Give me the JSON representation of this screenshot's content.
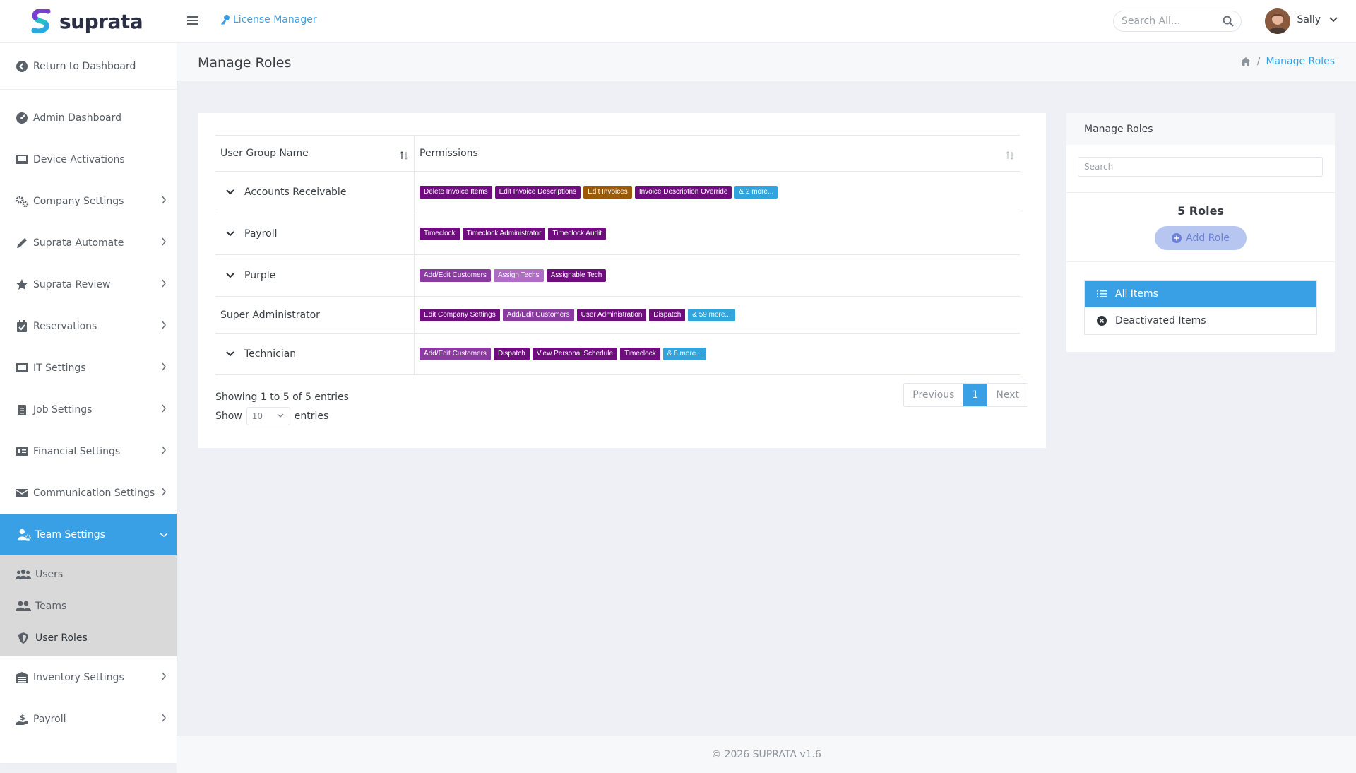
{
  "brand": {
    "name": "suprata"
  },
  "sidebar": {
    "return_label": "Return to Dashboard",
    "items": [
      {
        "label": "Admin Dashboard",
        "icon": "gauge-icon"
      },
      {
        "label": "Device Activations",
        "icon": "laptop-icon"
      },
      {
        "label": "Company Settings",
        "icon": "cogs-icon"
      },
      {
        "label": "Suprata Automate",
        "icon": "pencil-icon"
      },
      {
        "label": "Suprata Review",
        "icon": "star-icon"
      },
      {
        "label": "Reservations",
        "icon": "calendar-check-icon"
      },
      {
        "label": "IT Settings",
        "icon": "laptop-icon"
      },
      {
        "label": "Job Settings",
        "icon": "clipboard-icon"
      },
      {
        "label": "Financial Settings",
        "icon": "id-card-icon"
      },
      {
        "label": "Communication Settings",
        "icon": "envelope-icon"
      }
    ],
    "active_item": {
      "label": "Team Settings",
      "icon": "user-gear-icon"
    },
    "sub_items": [
      {
        "label": "Users",
        "icon": "users-icon"
      },
      {
        "label": "Teams",
        "icon": "user-group-icon"
      },
      {
        "label": "User Roles",
        "icon": "shield-icon"
      }
    ],
    "after_items": [
      {
        "label": "Inventory Settings",
        "icon": "warehouse-icon"
      },
      {
        "label": "Payroll",
        "icon": "hand-dollar-icon"
      }
    ]
  },
  "header": {
    "module_label": "License Manager",
    "search_placeholder": "Search All...",
    "user_name": "Sally"
  },
  "page": {
    "title": "Manage Roles",
    "breadcrumb_current": "Manage Roles"
  },
  "table": {
    "col_group": "User Group Name",
    "col_permissions": "Permissions",
    "rows": [
      {
        "name": "Accounts Receivable",
        "expandable": true,
        "badges": [
          {
            "text": "Delete Invoice Items",
            "color": "#6f0d7f"
          },
          {
            "text": "Edit Invoice Descriptions",
            "color": "#6f0d7f"
          },
          {
            "text": "Edit Invoices",
            "color": "#9a5a07"
          },
          {
            "text": "Invoice Description Override",
            "color": "#6f0d7f"
          },
          {
            "text": "& 2 more...",
            "color": "#31a3dd"
          }
        ]
      },
      {
        "name": "Payroll",
        "expandable": true,
        "badges": [
          {
            "text": "Timeclock",
            "color": "#6f0d7f"
          },
          {
            "text": "Timeclock Administrator",
            "color": "#6f0d7f"
          },
          {
            "text": "Timeclock Audit",
            "color": "#6f0d7f"
          }
        ]
      },
      {
        "name": "Purple",
        "expandable": true,
        "badges": [
          {
            "text": "Add/Edit Customers",
            "color": "#8a3aa0"
          },
          {
            "text": "Assign Techs",
            "color": "#b06bc7"
          },
          {
            "text": "Assignable Tech",
            "color": "#6f0d7f"
          }
        ]
      },
      {
        "name": "Super Administrator",
        "expandable": false,
        "badges": [
          {
            "text": "Edit Company Settings",
            "color": "#6f0d7f"
          },
          {
            "text": "Add/Edit Customers",
            "color": "#8a3aa0"
          },
          {
            "text": "User Administration",
            "color": "#6f0d7f"
          },
          {
            "text": "Dispatch",
            "color": "#6f0d7f"
          },
          {
            "text": "& 59 more...",
            "color": "#31a3dd"
          }
        ]
      },
      {
        "name": "Technician",
        "expandable": true,
        "badges": [
          {
            "text": "Add/Edit Customers",
            "color": "#8a3aa0"
          },
          {
            "text": "Dispatch",
            "color": "#6f0d7f"
          },
          {
            "text": "View Personal Schedule",
            "color": "#6f0d7f"
          },
          {
            "text": "Timeclock",
            "color": "#6f0d7f"
          },
          {
            "text": "& 8 more...",
            "color": "#31a3dd"
          }
        ]
      }
    ],
    "showing_text": "Showing 1 to 5 of 5 entries",
    "show_label": "Show",
    "page_size": "10",
    "entries_label": "entries",
    "pager": {
      "previous": "Previous",
      "current": "1",
      "next": "Next"
    }
  },
  "right_panel": {
    "title": "Manage Roles",
    "search_placeholder": "Search",
    "count_label": "5 Roles",
    "add_label": "Add Role",
    "filters": [
      {
        "label": "All Items",
        "active": true
      },
      {
        "label": "Deactivated Items",
        "active": false
      }
    ]
  },
  "footer": {
    "text": "© 2026 SUPRATA v1.6"
  },
  "colors": {
    "accent": "#39a0e6",
    "badge_dark_purple": "#6f0d7f",
    "badge_orange": "#9a5a07",
    "badge_more": "#31a3dd"
  }
}
